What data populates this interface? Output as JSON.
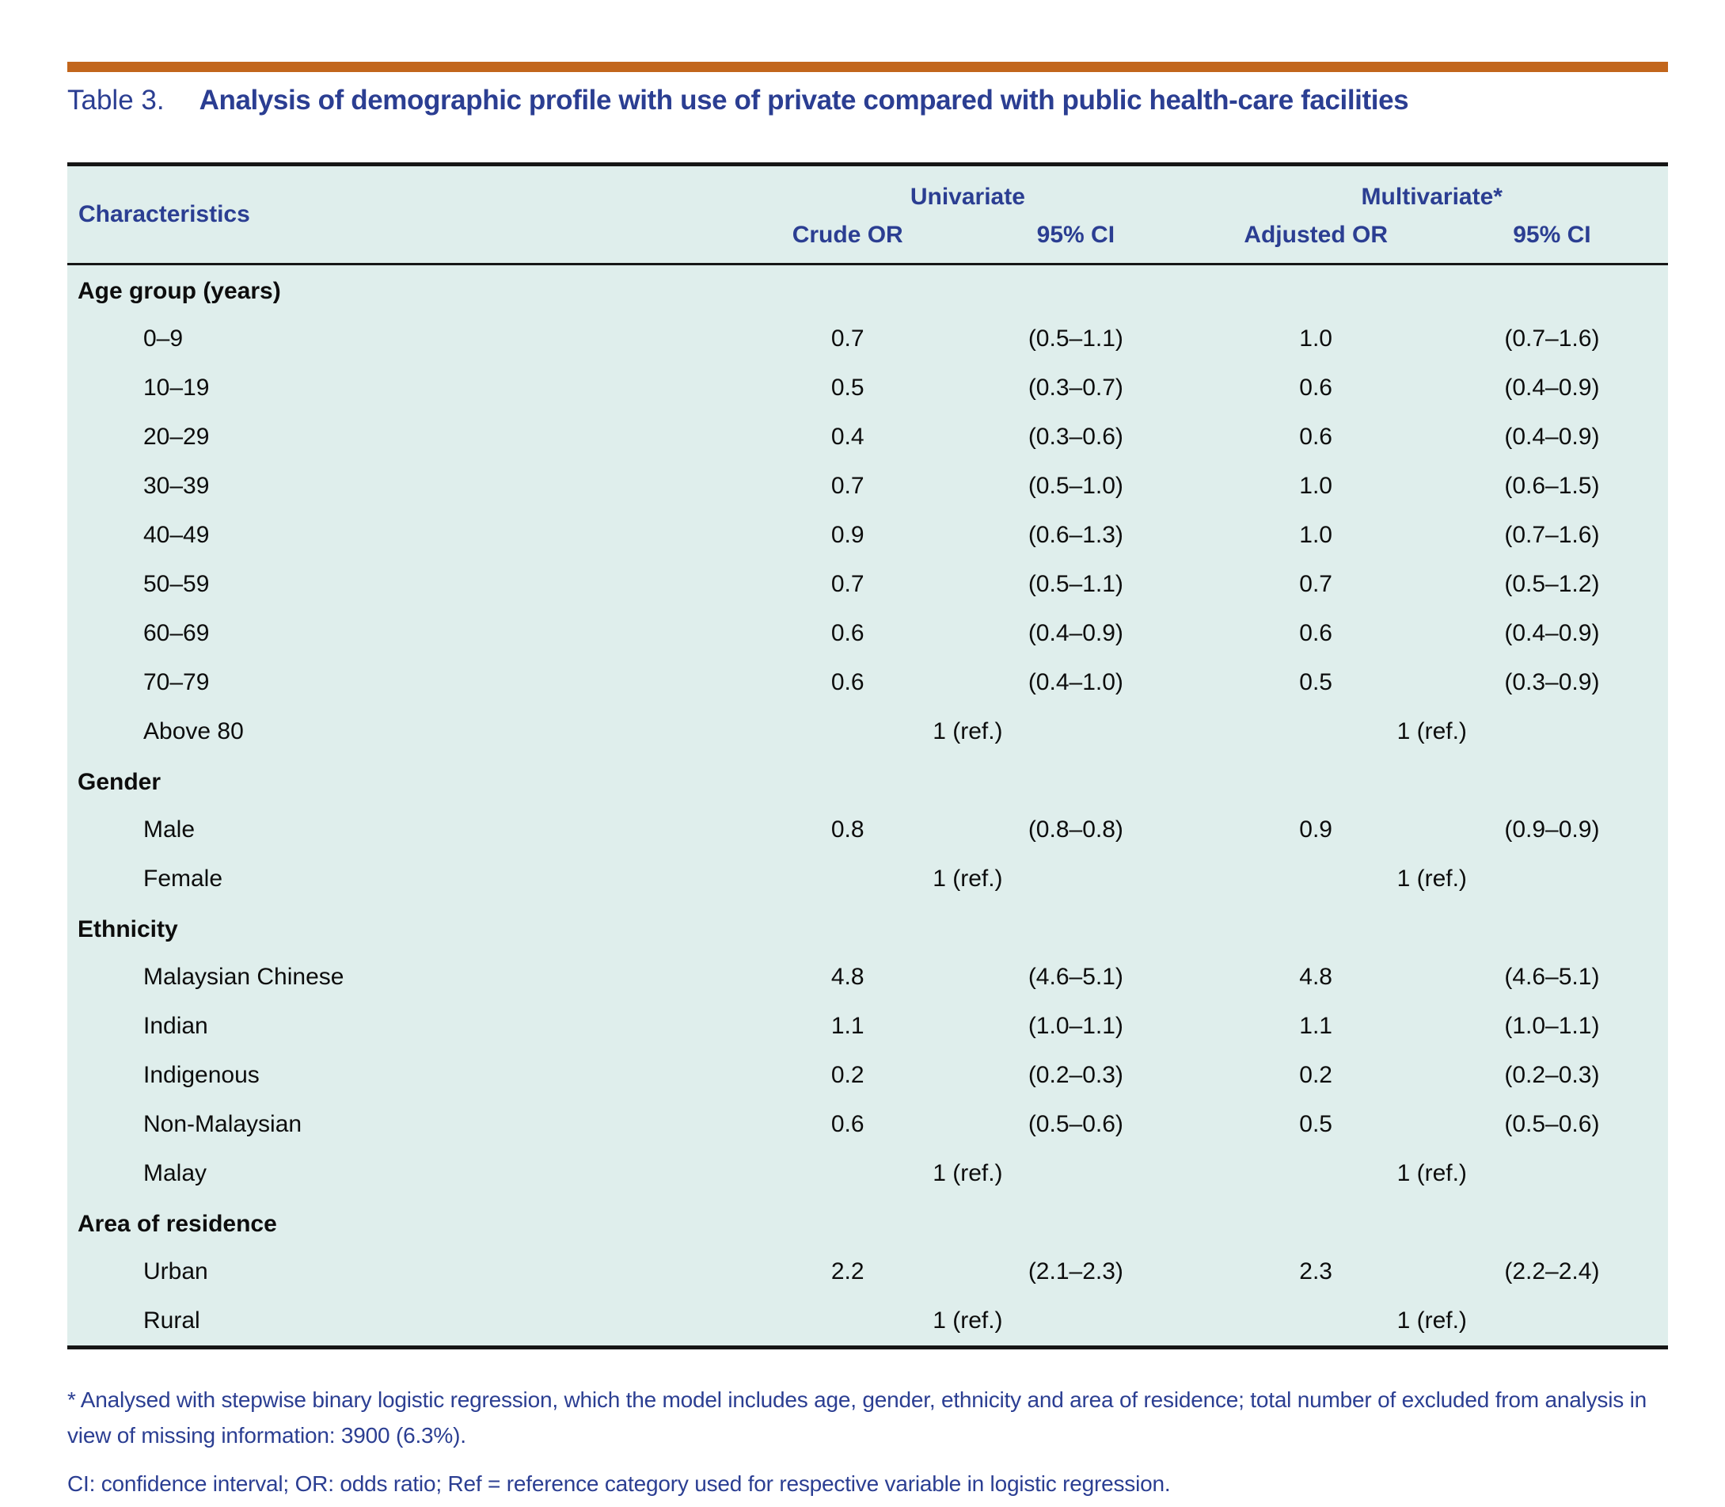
{
  "colors": {
    "heading_text": "#2b3e92",
    "accent_rule": "#c2661c",
    "table_background": "#dfeeec",
    "body_text": "#0d0d0d",
    "border": "#161616"
  },
  "title": {
    "label": "Table 3.",
    "text": "Analysis of demographic profile with use of private compared with public health-care facilities"
  },
  "table": {
    "characteristics_header": "Characteristics",
    "groups": [
      "Univariate",
      "Multivariate*"
    ],
    "sub_headers": [
      "Crude OR",
      "95% CI",
      "Adjusted OR",
      "95% CI"
    ],
    "ref_label": "1 (ref.)",
    "sections": [
      {
        "header": "Age group (years)",
        "rows": [
          {
            "label": "0–9",
            "crude_or": "0.7",
            "crude_ci": "(0.5–1.1)",
            "adj_or": "1.0",
            "adj_ci": "(0.7–1.6)"
          },
          {
            "label": "10–19",
            "crude_or": "0.5",
            "crude_ci": "(0.3–0.7)",
            "adj_or": "0.6",
            "adj_ci": "(0.4–0.9)"
          },
          {
            "label": "20–29",
            "crude_or": "0.4",
            "crude_ci": "(0.3–0.6)",
            "adj_or": "0.6",
            "adj_ci": "(0.4–0.9)"
          },
          {
            "label": "30–39",
            "crude_or": "0.7",
            "crude_ci": "(0.5–1.0)",
            "adj_or": "1.0",
            "adj_ci": "(0.6–1.5)"
          },
          {
            "label": "40–49",
            "crude_or": "0.9",
            "crude_ci": "(0.6–1.3)",
            "adj_or": "1.0",
            "adj_ci": "(0.7–1.6)"
          },
          {
            "label": "50–59",
            "crude_or": "0.7",
            "crude_ci": "(0.5–1.1)",
            "adj_or": "0.7",
            "adj_ci": "(0.5–1.2)"
          },
          {
            "label": "60–69",
            "crude_or": "0.6",
            "crude_ci": "(0.4–0.9)",
            "adj_or": "0.6",
            "adj_ci": "(0.4–0.9)"
          },
          {
            "label": "70–79",
            "crude_or": "0.6",
            "crude_ci": "(0.4–1.0)",
            "adj_or": "0.5",
            "adj_ci": "(0.3–0.9)"
          },
          {
            "label": "Above 80",
            "ref": true
          }
        ]
      },
      {
        "header": "Gender",
        "rows": [
          {
            "label": "Male",
            "crude_or": "0.8",
            "crude_ci": "(0.8–0.8)",
            "adj_or": "0.9",
            "adj_ci": "(0.9–0.9)"
          },
          {
            "label": "Female",
            "ref": true
          }
        ]
      },
      {
        "header": "Ethnicity",
        "rows": [
          {
            "label": "Malaysian Chinese",
            "crude_or": "4.8",
            "crude_ci": "(4.6–5.1)",
            "adj_or": "4.8",
            "adj_ci": "(4.6–5.1)"
          },
          {
            "label": "Indian",
            "crude_or": "1.1",
            "crude_ci": "(1.0–1.1)",
            "adj_or": "1.1",
            "adj_ci": "(1.0–1.1)"
          },
          {
            "label": "Indigenous",
            "crude_or": "0.2",
            "crude_ci": "(0.2–0.3)",
            "adj_or": "0.2",
            "adj_ci": "(0.2–0.3)"
          },
          {
            "label": "Non-Malaysian",
            "crude_or": "0.6",
            "crude_ci": "(0.5–0.6)",
            "adj_or": "0.5",
            "adj_ci": "(0.5–0.6)"
          },
          {
            "label": "Malay",
            "ref": true
          }
        ]
      },
      {
        "header": "Area of residence",
        "rows": [
          {
            "label": "Urban",
            "crude_or": "2.2",
            "crude_ci": "(2.1–2.3)",
            "adj_or": "2.3",
            "adj_ci": "(2.2–2.4)"
          },
          {
            "label": "Rural",
            "ref": true
          }
        ]
      }
    ]
  },
  "footnotes": [
    "* Analysed with stepwise binary logistic regression, which the model includes age, gender, ethnicity and area of residence; total number of excluded from analysis in view of missing information: 3900 (6.3%).",
    "CI: confidence interval; OR: odds ratio; Ref = reference category used for respective variable in logistic regression."
  ]
}
